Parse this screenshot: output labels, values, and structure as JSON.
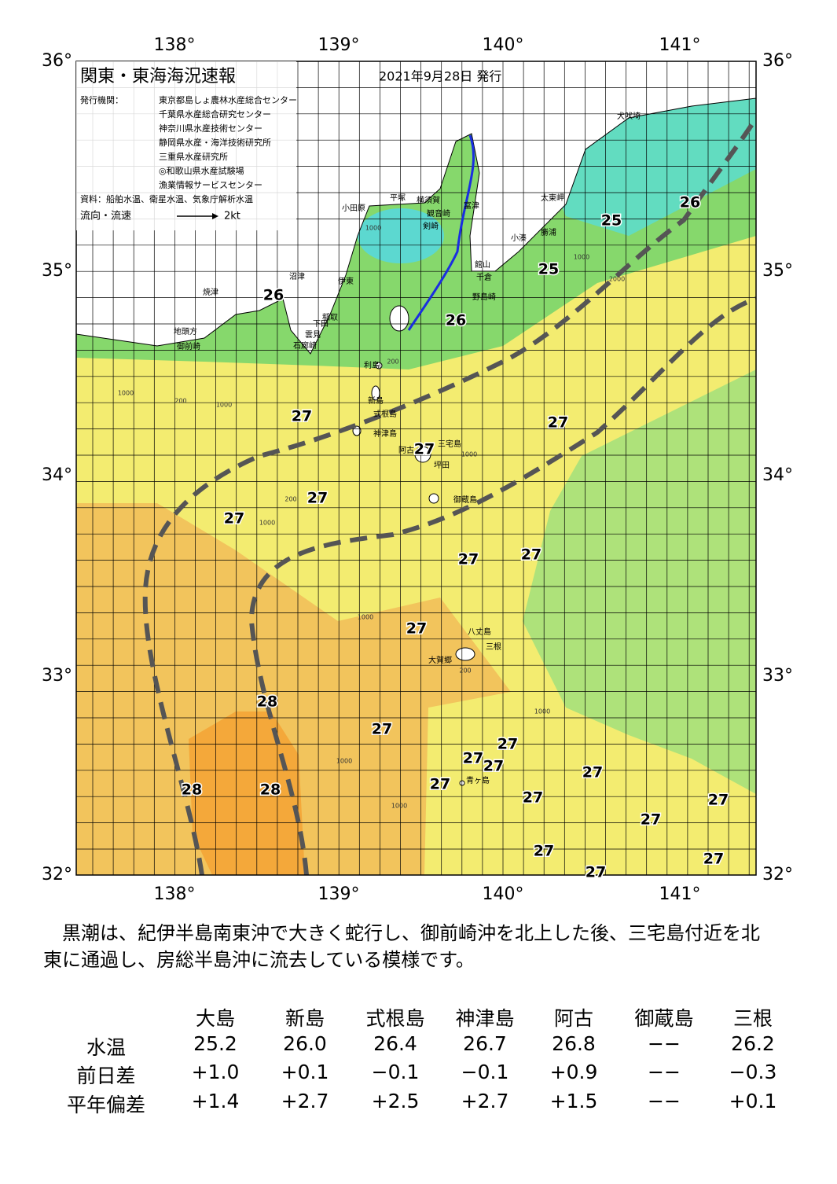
{
  "header": {
    "title": "関東・東海海況速報",
    "date": "2021年9月28日 発行",
    "issuer_label": "発行機関：",
    "issuers": [
      "東京都島しょ農林水産総合センター",
      "千葉県水産総合研究センター",
      "神奈川県水産技術センター",
      "静岡県水産・海洋技術研究所",
      "三重県水産研究所",
      "◎和歌山県水産試験場",
      "漁業情報サービスセンター"
    ],
    "source": "資料：船舶水温、衛星水温、気象庁解析水温",
    "legend_label": "流向・流速",
    "legend_scale": "2kt"
  },
  "map": {
    "lon_ticks": [
      "138°",
      "139°",
      "140°",
      "141°"
    ],
    "lat_ticks": [
      "36°",
      "35°",
      "34°",
      "33°",
      "32°"
    ],
    "temperature_labels": [
      "26",
      "26",
      "25",
      "26",
      "25",
      "27",
      "27",
      "27",
      "27",
      "27",
      "27",
      "27",
      "27",
      "28",
      "27",
      "27",
      "27",
      "27",
      "27",
      "27",
      "28",
      "28",
      "27",
      "27",
      "27",
      "27",
      "27",
      "27"
    ],
    "place_names": [
      "犬吠埼",
      "太東岬",
      "勝浦",
      "小湊",
      "館山",
      "千倉",
      "野島崎",
      "富津",
      "観音崎",
      "剣崎",
      "横須賀",
      "平塚",
      "小田原",
      "伊東",
      "稲取",
      "下田",
      "雲見",
      "石廊崎",
      "沼津",
      "焼津",
      "地頭方",
      "御前崎",
      "利島",
      "新島",
      "式根島",
      "神津島",
      "三宅島",
      "阿古",
      "坪田",
      "御蔵島",
      "八丈島",
      "三根",
      "大賀郷",
      "青ヶ島"
    ],
    "contour_labels": [
      "1000",
      "200",
      "1000",
      "200",
      "1000",
      "1000",
      "1000",
      "1000",
      "1000",
      "1000",
      "200",
      "2000",
      "1000",
      "1000",
      "200"
    ]
  },
  "summary": "黒潮は、紀伊半島南東沖で大きく蛇行し、御前崎沖を北上した後、三宅島付近を北東に通過し、房総半島沖に流去している模様です。",
  "table": {
    "columns": [
      "大島",
      "新島",
      "式根島",
      "神津島",
      "阿古",
      "御蔵島",
      "三根"
    ],
    "rows": [
      [
        "水温",
        "25.2",
        "26.0",
        "26.4",
        "26.7",
        "26.8",
        "−−",
        "26.2"
      ],
      [
        "前日差",
        "+1.0",
        "+0.1",
        "−0.1",
        "−0.1",
        "+0.9",
        "−−",
        "−0.3"
      ],
      [
        "平年偏差",
        "+1.4",
        "+2.7",
        "+2.5",
        "+2.7",
        "+1.5",
        "−−",
        "+0.1"
      ]
    ]
  }
}
